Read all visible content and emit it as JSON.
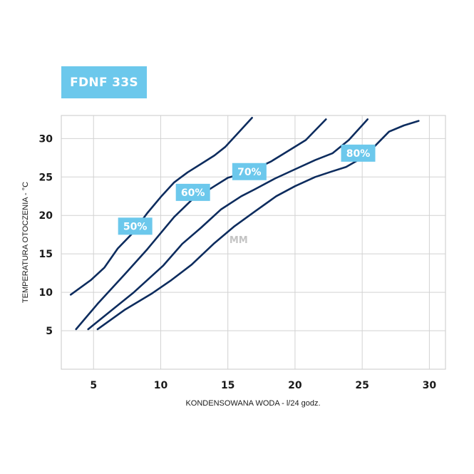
{
  "badge": {
    "title": "FDNF 33S"
  },
  "chart_data": {
    "type": "line",
    "xlabel": "KONDENSOWANA WODA - l/24 godz.",
    "ylabel": "TEMPERATURA OTOCZENIA - °C",
    "xlim": [
      2.6,
      31.2
    ],
    "ylim": [
      0,
      33
    ],
    "xticks": [
      5,
      10,
      15,
      20,
      25,
      30
    ],
    "yticks": [
      5,
      10,
      15,
      20,
      25,
      30
    ],
    "grid": true,
    "watermark": "MM",
    "series_color": "#0d2c5e",
    "label_color": "#6cc8ec",
    "series": [
      {
        "name": "50%",
        "label_at": [
          8.1,
          18.6
        ],
        "points": [
          [
            3.3,
            9.7
          ],
          [
            4.8,
            11.6
          ],
          [
            5.8,
            13.2
          ],
          [
            6.8,
            15.7
          ],
          [
            7.8,
            17.5
          ],
          [
            9.0,
            20.3
          ],
          [
            10.0,
            22.4
          ],
          [
            11.0,
            24.3
          ],
          [
            12.0,
            25.6
          ],
          [
            13.0,
            26.7
          ],
          [
            14.0,
            27.8
          ],
          [
            14.8,
            28.9
          ],
          [
            15.8,
            30.8
          ],
          [
            16.8,
            32.7
          ]
        ]
      },
      {
        "name": "60%",
        "label_at": [
          12.4,
          23.0
        ],
        "points": [
          [
            3.7,
            5.2
          ],
          [
            5.3,
            8.5
          ],
          [
            7.3,
            12.3
          ],
          [
            9.0,
            15.6
          ],
          [
            11.0,
            19.8
          ],
          [
            12.3,
            22.0
          ],
          [
            13.0,
            22.7
          ],
          [
            14.0,
            23.8
          ],
          [
            15.0,
            24.9
          ],
          [
            16.0,
            25.4
          ],
          [
            17.0,
            26.0
          ],
          [
            18.2,
            27.0
          ],
          [
            19.5,
            28.4
          ],
          [
            20.8,
            29.8
          ],
          [
            22.3,
            32.5
          ]
        ]
      },
      {
        "name": "70%",
        "label_at": [
          16.6,
          25.7
        ],
        "points": [
          [
            4.6,
            5.2
          ],
          [
            6.3,
            7.6
          ],
          [
            8.0,
            10.0
          ],
          [
            10.2,
            13.5
          ],
          [
            11.6,
            16.3
          ],
          [
            13.0,
            18.4
          ],
          [
            14.5,
            20.8
          ],
          [
            16.0,
            22.5
          ],
          [
            17.0,
            23.4
          ],
          [
            18.5,
            24.8
          ],
          [
            20.0,
            26.0
          ],
          [
            21.5,
            27.2
          ],
          [
            22.8,
            28.1
          ],
          [
            24.0,
            29.8
          ],
          [
            25.4,
            32.5
          ]
        ]
      },
      {
        "name": "80%",
        "label_at": [
          24.7,
          28.1
        ],
        "points": [
          [
            5.3,
            5.2
          ],
          [
            7.3,
            7.7
          ],
          [
            9.3,
            9.8
          ],
          [
            10.8,
            11.6
          ],
          [
            12.3,
            13.6
          ],
          [
            14.0,
            16.4
          ],
          [
            15.5,
            18.6
          ],
          [
            17.0,
            20.5
          ],
          [
            18.6,
            22.5
          ],
          [
            20.0,
            23.8
          ],
          [
            21.5,
            25.0
          ],
          [
            22.7,
            25.7
          ],
          [
            23.8,
            26.3
          ],
          [
            25.2,
            27.7
          ],
          [
            27.0,
            30.9
          ],
          [
            28.1,
            31.7
          ],
          [
            29.2,
            32.3
          ]
        ]
      }
    ]
  }
}
